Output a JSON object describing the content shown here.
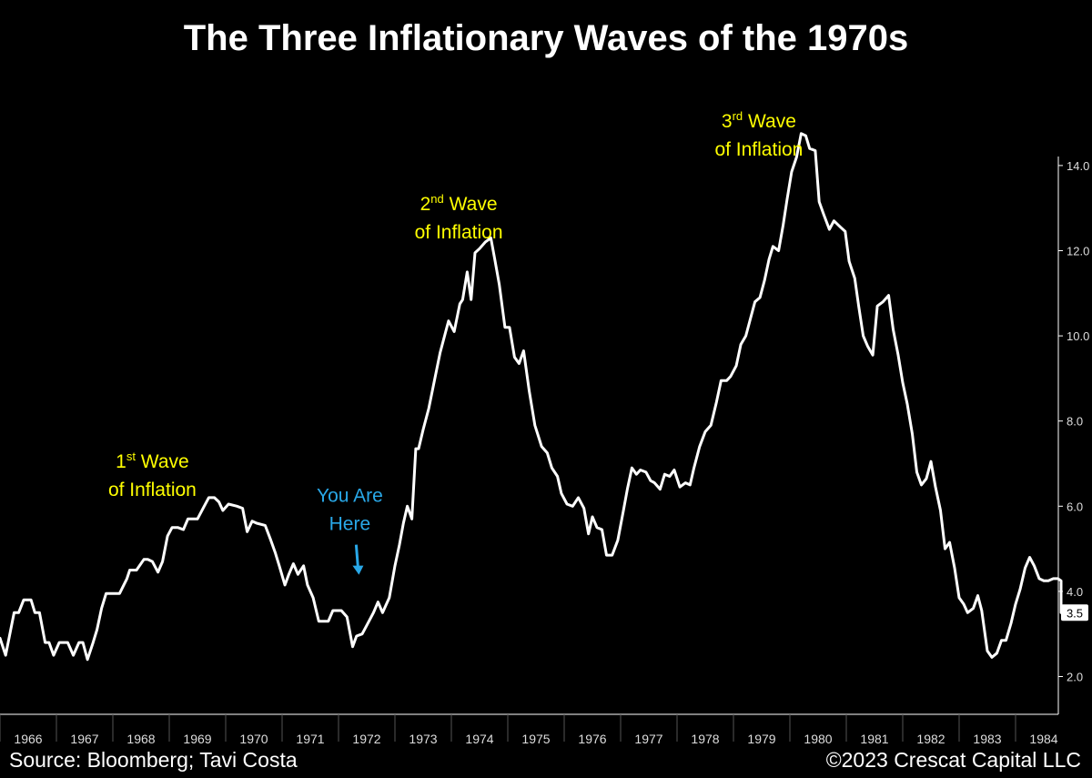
{
  "title": "The Three Inflationary Waves of the 1970s",
  "footer": {
    "source": "Source: Bloomberg; Tavi Costa",
    "copyright": "©2023 Crescat Capital LLC"
  },
  "colors": {
    "background": "#000000",
    "line": "#ffffff",
    "annotation_wave": "#ffff00",
    "annotation_here": "#29a8e8"
  },
  "annotations": [
    {
      "id": "wave1",
      "num": "1",
      "sup": "st",
      "rest": " Wave",
      "line2": "of Inflation",
      "x": 1968.7,
      "y": 6.9
    },
    {
      "id": "wave2",
      "num": "2",
      "sup": "nd",
      "rest": " Wave",
      "line2": "of Inflation",
      "x": 1974.13,
      "y": 12.95
    },
    {
      "id": "wave3",
      "num": "3",
      "sup": "rd",
      "rest": " Wave",
      "line2": "of Inflation",
      "x": 1979.45,
      "y": 14.9
    },
    {
      "id": "here",
      "line1": "You Are",
      "line2": "Here",
      "x": 1972.2,
      "y": 6.1
    }
  ],
  "chart_data": {
    "type": "line",
    "title": "The Three Inflationary Waves of the 1970s",
    "xlabel": "",
    "ylabel": "",
    "xlim": [
      1966.0,
      1985.0
    ],
    "ylim": [
      1.4,
      15.6
    ],
    "y_ticks": [
      "2.0",
      "4.0",
      "6.0",
      "8.0",
      "10.0",
      "12.0",
      "14.0"
    ],
    "x_ticks": [
      "1966",
      "1967",
      "1968",
      "1969",
      "1970",
      "1971",
      "1972",
      "1973",
      "1974",
      "1975",
      "1976",
      "1977",
      "1978",
      "1979",
      "1980",
      "1981",
      "1982",
      "1983",
      "1984"
    ],
    "last_value_label": "3.5",
    "grid": false,
    "series": [
      {
        "values": [
          [
            1966.0,
            2.9
          ],
          [
            1966.1,
            2.5
          ],
          [
            1966.25,
            3.5
          ],
          [
            1966.33,
            3.5
          ],
          [
            1966.42,
            3.8
          ],
          [
            1966.55,
            3.8
          ],
          [
            1966.62,
            3.5
          ],
          [
            1966.7,
            3.5
          ],
          [
            1966.8,
            2.8
          ],
          [
            1966.87,
            2.8
          ],
          [
            1966.95,
            2.5
          ],
          [
            1967.05,
            2.8
          ],
          [
            1967.2,
            2.8
          ],
          [
            1967.3,
            2.5
          ],
          [
            1967.4,
            2.8
          ],
          [
            1967.47,
            2.8
          ],
          [
            1967.55,
            2.4
          ],
          [
            1967.65,
            2.8
          ],
          [
            1967.72,
            3.1
          ],
          [
            1967.8,
            3.6
          ],
          [
            1967.88,
            3.95
          ],
          [
            1968.05,
            3.95
          ],
          [
            1968.12,
            3.95
          ],
          [
            1968.25,
            4.3
          ],
          [
            1968.3,
            4.5
          ],
          [
            1968.42,
            4.5
          ],
          [
            1968.55,
            4.75
          ],
          [
            1968.62,
            4.75
          ],
          [
            1968.7,
            4.7
          ],
          [
            1968.8,
            4.45
          ],
          [
            1968.88,
            4.7
          ],
          [
            1968.97,
            5.3
          ],
          [
            1969.05,
            5.5
          ],
          [
            1969.15,
            5.5
          ],
          [
            1969.25,
            5.45
          ],
          [
            1969.33,
            5.7
          ],
          [
            1969.42,
            5.7
          ],
          [
            1969.5,
            5.7
          ],
          [
            1969.6,
            5.95
          ],
          [
            1969.7,
            6.2
          ],
          [
            1969.8,
            6.2
          ],
          [
            1969.88,
            6.1
          ],
          [
            1969.95,
            5.9
          ],
          [
            1970.05,
            6.05
          ],
          [
            1970.2,
            6.0
          ],
          [
            1970.3,
            5.95
          ],
          [
            1970.38,
            5.4
          ],
          [
            1970.47,
            5.65
          ],
          [
            1970.55,
            5.6
          ],
          [
            1970.7,
            5.55
          ],
          [
            1970.8,
            5.2
          ],
          [
            1970.88,
            4.9
          ],
          [
            1970.95,
            4.6
          ],
          [
            1971.05,
            4.15
          ],
          [
            1971.12,
            4.4
          ],
          [
            1971.2,
            4.65
          ],
          [
            1971.28,
            4.4
          ],
          [
            1971.38,
            4.6
          ],
          [
            1971.45,
            4.15
          ],
          [
            1971.55,
            3.85
          ],
          [
            1971.65,
            3.3
          ],
          [
            1971.75,
            3.3
          ],
          [
            1971.82,
            3.3
          ],
          [
            1971.9,
            3.55
          ],
          [
            1972.05,
            3.55
          ],
          [
            1972.15,
            3.4
          ],
          [
            1972.25,
            2.7
          ],
          [
            1972.32,
            2.95
          ],
          [
            1972.42,
            3.0
          ],
          [
            1972.5,
            3.2
          ],
          [
            1972.62,
            3.5
          ],
          [
            1972.7,
            3.75
          ],
          [
            1972.78,
            3.5
          ],
          [
            1972.9,
            3.85
          ],
          [
            1973.0,
            4.6
          ],
          [
            1973.08,
            5.1
          ],
          [
            1973.15,
            5.6
          ],
          [
            1973.22,
            6.0
          ],
          [
            1973.3,
            5.7
          ],
          [
            1973.37,
            7.35
          ],
          [
            1973.42,
            7.35
          ],
          [
            1973.5,
            7.8
          ],
          [
            1973.6,
            8.3
          ],
          [
            1973.7,
            8.95
          ],
          [
            1973.8,
            9.6
          ],
          [
            1973.9,
            10.1
          ],
          [
            1973.95,
            10.35
          ],
          [
            1974.05,
            10.1
          ],
          [
            1974.15,
            10.75
          ],
          [
            1974.2,
            10.85
          ],
          [
            1974.28,
            11.5
          ],
          [
            1974.35,
            10.85
          ],
          [
            1974.42,
            11.95
          ],
          [
            1974.5,
            12.05
          ],
          [
            1974.6,
            12.2
          ],
          [
            1974.7,
            12.3
          ],
          [
            1974.77,
            11.8
          ],
          [
            1974.85,
            11.2
          ],
          [
            1974.95,
            10.2
          ],
          [
            1975.03,
            10.2
          ],
          [
            1975.12,
            9.5
          ],
          [
            1975.2,
            9.35
          ],
          [
            1975.28,
            9.65
          ],
          [
            1975.38,
            8.7
          ],
          [
            1975.48,
            7.9
          ],
          [
            1975.6,
            7.4
          ],
          [
            1975.7,
            7.25
          ],
          [
            1975.78,
            6.9
          ],
          [
            1975.88,
            6.7
          ],
          [
            1975.95,
            6.3
          ],
          [
            1976.05,
            6.05
          ],
          [
            1976.15,
            6.0
          ],
          [
            1976.25,
            6.2
          ],
          [
            1976.35,
            5.95
          ],
          [
            1976.43,
            5.35
          ],
          [
            1976.5,
            5.75
          ],
          [
            1976.58,
            5.5
          ],
          [
            1976.67,
            5.45
          ],
          [
            1976.75,
            4.85
          ],
          [
            1976.85,
            4.85
          ],
          [
            1976.95,
            5.2
          ],
          [
            1977.05,
            5.9
          ],
          [
            1977.12,
            6.4
          ],
          [
            1977.2,
            6.9
          ],
          [
            1977.28,
            6.75
          ],
          [
            1977.35,
            6.85
          ],
          [
            1977.45,
            6.8
          ],
          [
            1977.53,
            6.6
          ],
          [
            1977.6,
            6.55
          ],
          [
            1977.7,
            6.4
          ],
          [
            1977.78,
            6.75
          ],
          [
            1977.87,
            6.7
          ],
          [
            1977.95,
            6.85
          ],
          [
            1978.05,
            6.45
          ],
          [
            1978.15,
            6.55
          ],
          [
            1978.23,
            6.5
          ],
          [
            1978.3,
            6.9
          ],
          [
            1978.4,
            7.4
          ],
          [
            1978.5,
            7.75
          ],
          [
            1978.6,
            7.9
          ],
          [
            1978.7,
            8.45
          ],
          [
            1978.78,
            8.95
          ],
          [
            1978.88,
            8.95
          ],
          [
            1978.95,
            9.05
          ],
          [
            1979.05,
            9.3
          ],
          [
            1979.13,
            9.8
          ],
          [
            1979.22,
            10.0
          ],
          [
            1979.3,
            10.4
          ],
          [
            1979.38,
            10.8
          ],
          [
            1979.47,
            10.9
          ],
          [
            1979.55,
            11.3
          ],
          [
            1979.63,
            11.8
          ],
          [
            1979.7,
            12.1
          ],
          [
            1979.8,
            12.0
          ],
          [
            1979.88,
            12.6
          ],
          [
            1979.95,
            13.2
          ],
          [
            1980.03,
            13.85
          ],
          [
            1980.12,
            14.2
          ],
          [
            1980.2,
            14.75
          ],
          [
            1980.28,
            14.7
          ],
          [
            1980.35,
            14.4
          ],
          [
            1980.45,
            14.35
          ],
          [
            1980.52,
            13.15
          ],
          [
            1980.6,
            12.85
          ],
          [
            1980.7,
            12.5
          ],
          [
            1980.78,
            12.7
          ],
          [
            1980.9,
            12.55
          ],
          [
            1980.98,
            12.45
          ],
          [
            1981.05,
            11.75
          ],
          [
            1981.15,
            11.35
          ],
          [
            1981.22,
            10.7
          ],
          [
            1981.3,
            10.0
          ],
          [
            1981.38,
            9.75
          ],
          [
            1981.47,
            9.55
          ],
          [
            1981.55,
            10.7
          ],
          [
            1981.65,
            10.8
          ],
          [
            1981.75,
            10.95
          ],
          [
            1981.83,
            10.15
          ],
          [
            1981.92,
            9.55
          ],
          [
            1982.0,
            8.9
          ],
          [
            1982.08,
            8.4
          ],
          [
            1982.17,
            7.7
          ],
          [
            1982.25,
            6.8
          ],
          [
            1982.33,
            6.5
          ],
          [
            1982.42,
            6.65
          ],
          [
            1982.5,
            7.05
          ],
          [
            1982.58,
            6.45
          ],
          [
            1982.67,
            5.9
          ],
          [
            1982.75,
            5.0
          ],
          [
            1982.83,
            5.15
          ],
          [
            1982.92,
            4.55
          ],
          [
            1983.0,
            3.85
          ],
          [
            1983.08,
            3.7
          ],
          [
            1983.15,
            3.5
          ],
          [
            1983.25,
            3.6
          ],
          [
            1983.33,
            3.9
          ],
          [
            1983.4,
            3.55
          ],
          [
            1983.5,
            2.6
          ],
          [
            1983.58,
            2.45
          ],
          [
            1983.67,
            2.55
          ],
          [
            1983.75,
            2.85
          ],
          [
            1983.83,
            2.85
          ],
          [
            1983.92,
            3.25
          ],
          [
            1984.0,
            3.7
          ],
          [
            1984.08,
            4.05
          ],
          [
            1984.17,
            4.55
          ],
          [
            1984.25,
            4.8
          ],
          [
            1984.33,
            4.6
          ],
          [
            1984.42,
            4.3
          ],
          [
            1984.5,
            4.25
          ],
          [
            1984.58,
            4.25
          ],
          [
            1984.67,
            4.3
          ],
          [
            1984.75,
            4.3
          ],
          [
            1984.83,
            4.25
          ],
          [
            1984.92,
            4.05
          ],
          [
            1985.0,
            3.95
          ],
          [
            1985.05,
            3.7
          ],
          [
            1985.1,
            3.5
          ]
        ]
      }
    ]
  }
}
